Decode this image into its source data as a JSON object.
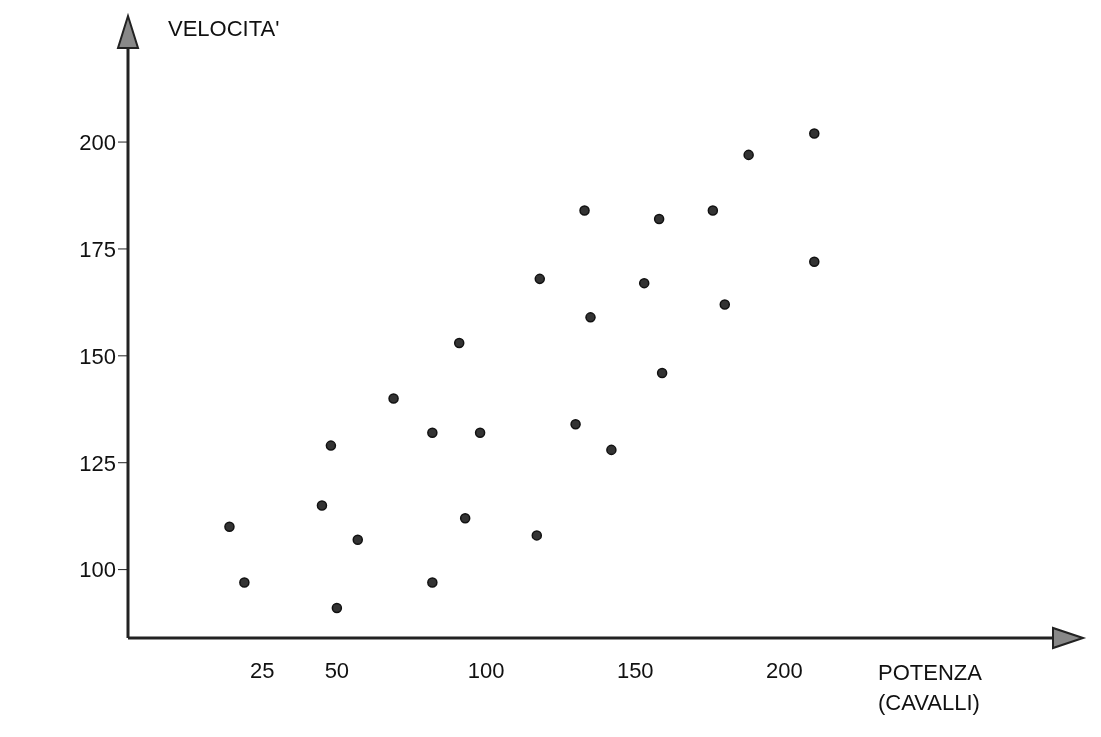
{
  "chart_data": {
    "type": "scatter",
    "xlabel": "POTENZA (CAVALLI)",
    "ylabel": "VELOCITA'",
    "x": [
      14,
      19,
      45,
      48,
      50,
      57,
      69,
      82,
      82,
      91,
      93,
      98,
      117,
      118,
      130,
      133,
      135,
      142,
      153,
      158,
      159,
      176,
      180,
      188,
      210,
      210
    ],
    "series": [
      {
        "color": "#333333",
        "values": [
          110,
          97,
          115,
          129,
          91,
          107,
          140,
          97,
          132,
          153,
          112,
          132,
          108,
          168,
          134,
          184,
          159,
          128,
          167,
          182,
          146,
          184,
          162,
          197,
          202,
          172
        ]
      }
    ],
    "xlim": [
      -20,
      290
    ],
    "xticks": [
      25,
      50,
      100,
      150,
      200
    ],
    "ylim": [
      84,
      222
    ],
    "yticks": [
      100,
      125,
      150,
      175,
      200
    ],
    "marker": "circle",
    "grid": false,
    "legend": false
  }
}
